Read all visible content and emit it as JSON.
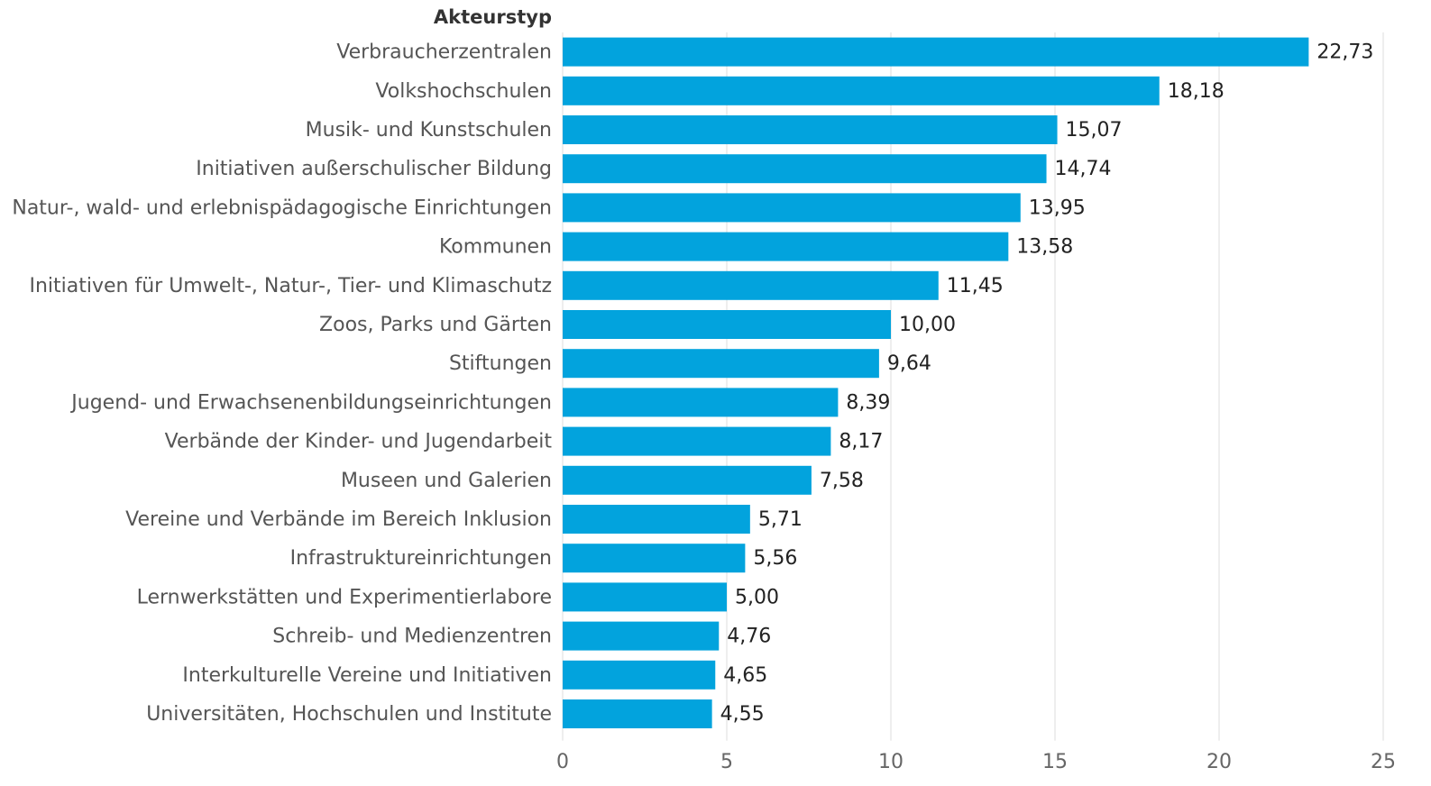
{
  "chart_data": {
    "type": "barh",
    "y_label": "Akteurstyp",
    "categories": [
      "Verbraucherzentralen",
      "Volkshochschulen",
      "Musik- und Kunstschulen",
      "Initiativen außerschulischer Bildung",
      "Natur-, wald- und erlebnispädagogische Einrichtungen",
      "Kommunen",
      "Initiativen für Umwelt-, Natur-, Tier- und Klimaschutz",
      "Zoos, Parks und Gärten",
      "Stiftungen",
      "Jugend- und Erwachsenenbildungseinrichtungen",
      "Verbände der Kinder- und Jugendarbeit",
      "Museen und Galerien",
      "Vereine und Verbände im Bereich Inklusion",
      "Infrastruktureinrichtungen",
      "Lernwerkstätten und Experimentierlabore",
      "Schreib- und Medienzentren",
      "Interkulturelle Vereine und Initiativen",
      "Universitäten, Hochschulen und Institute"
    ],
    "values": [
      22.73,
      18.18,
      15.07,
      14.74,
      13.95,
      13.58,
      11.45,
      10,
      9.64,
      8.39,
      8.17,
      7.58,
      5.71,
      5.56,
      5,
      4.76,
      4.65,
      4.55
    ],
    "value_labels": [
      "22,73",
      "18,18",
      "15,07",
      "14,74",
      "13,95",
      "13,58",
      "11,45",
      "10,00",
      "9,64",
      "8,39",
      "8,17",
      "7,58",
      "5,71",
      "5,56",
      "5,00",
      "4,76",
      "4,65",
      "4,55"
    ],
    "color": "#02a3dd",
    "xlim": [
      0,
      25
    ],
    "xticks": [
      0,
      5,
      10,
      15,
      20,
      25
    ],
    "grid": true
  }
}
